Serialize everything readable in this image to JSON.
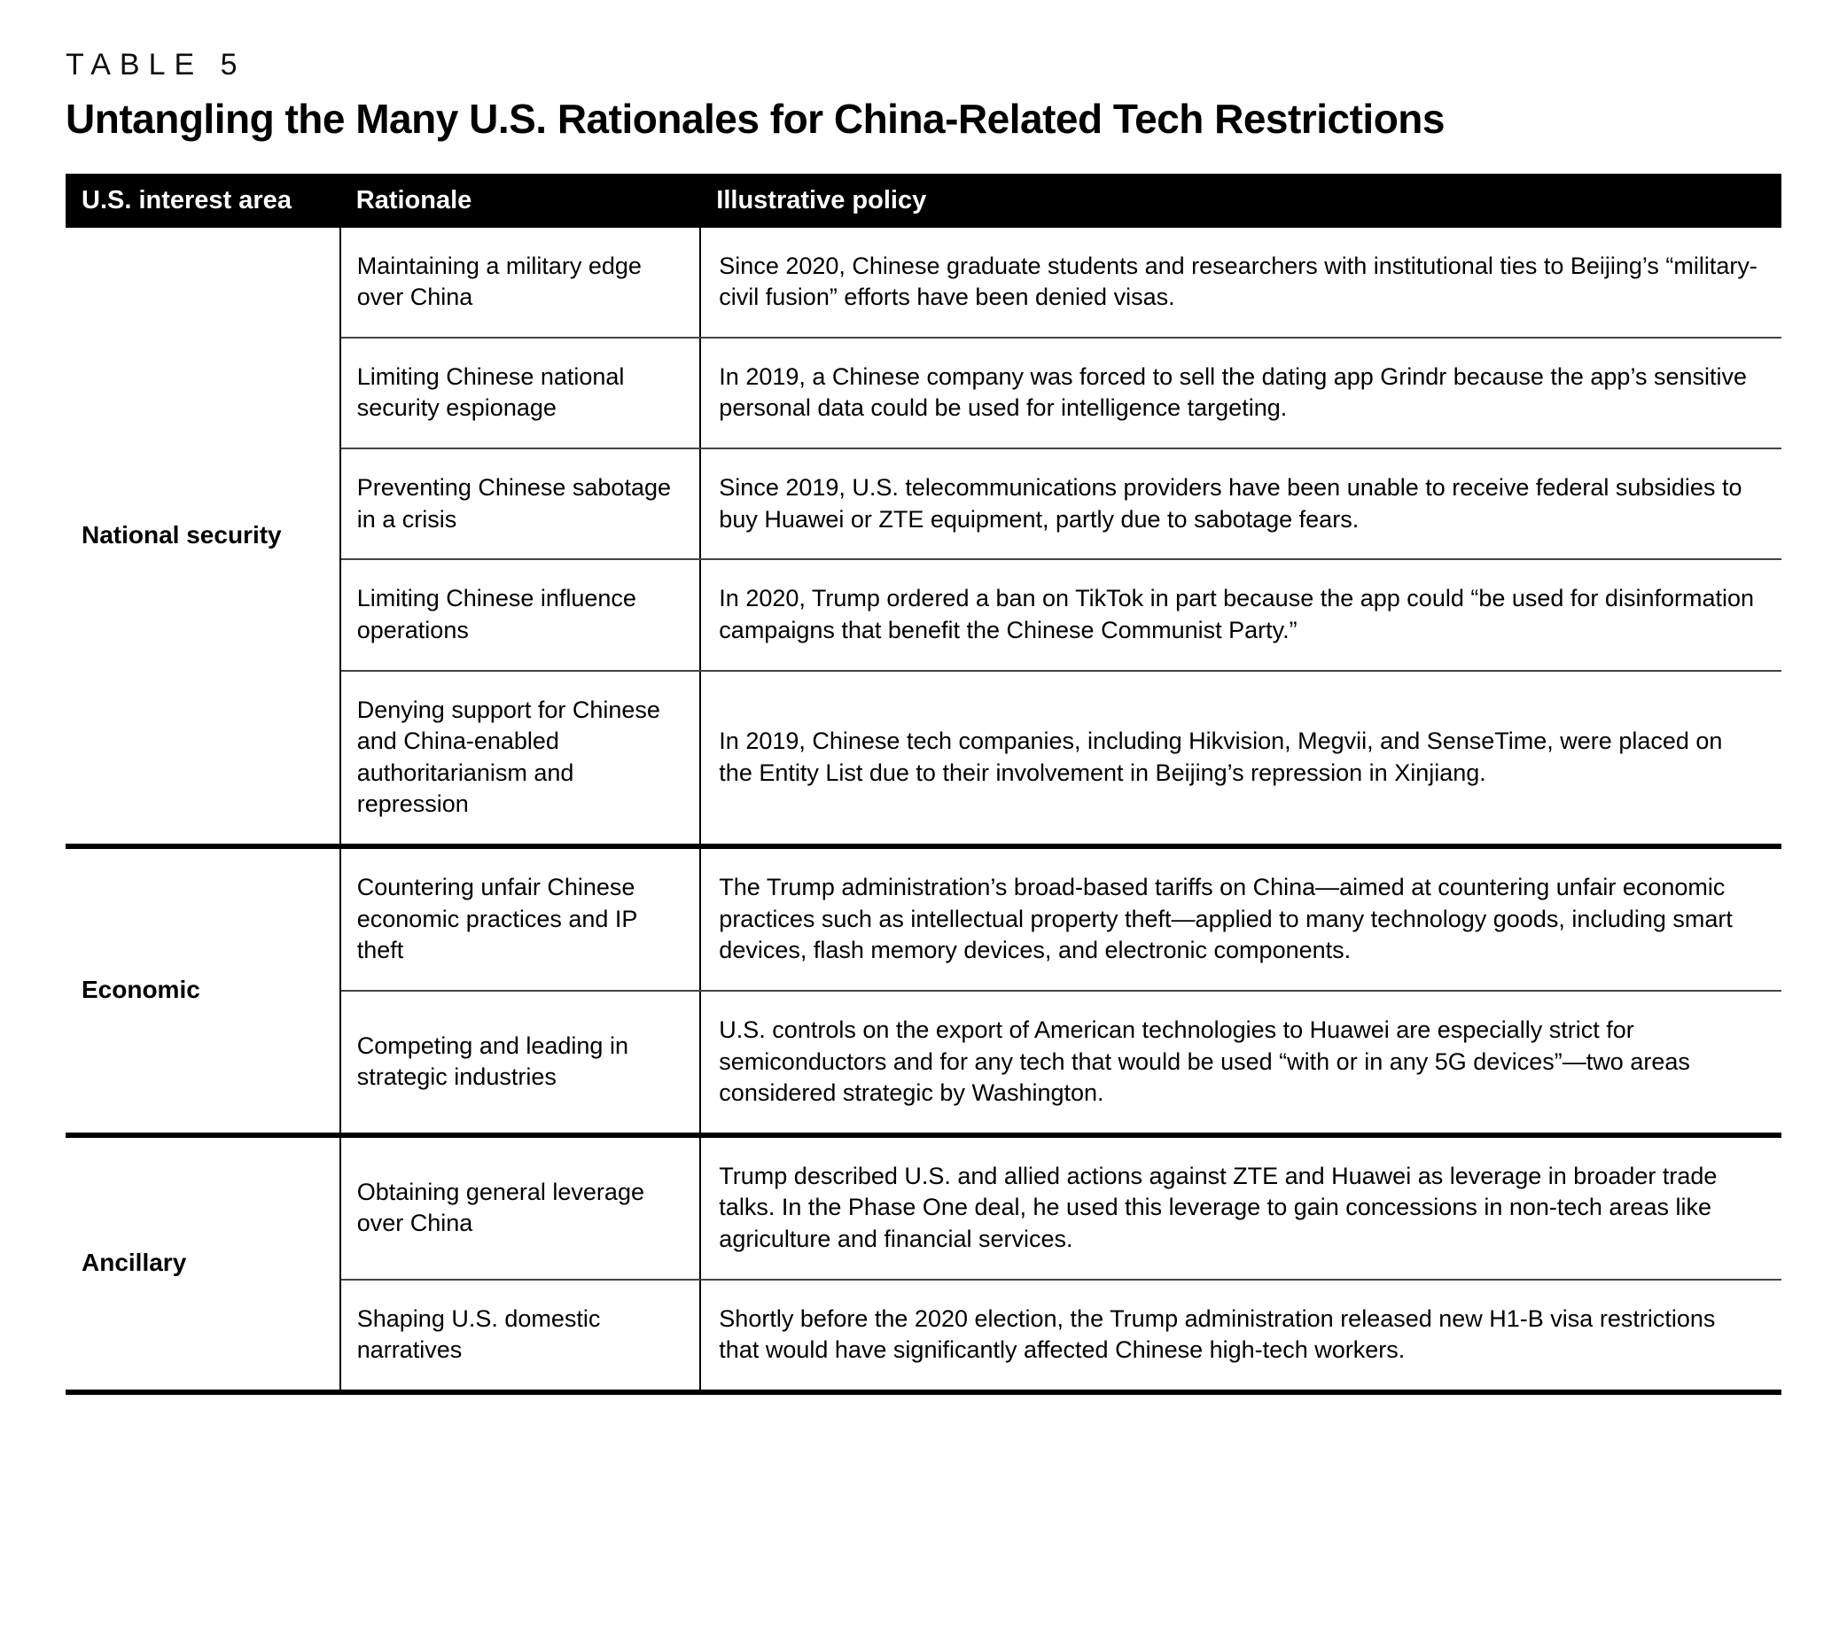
{
  "page": {
    "kicker": "TABLE 5",
    "title": "Untangling the Many U.S. Rationales for China-Related Tech Restrictions"
  },
  "table": {
    "columns": [
      "U.S. interest area",
      "Rationale",
      "Illustrative policy"
    ],
    "groups": [
      {
        "label": "National security",
        "rows": [
          {
            "rationale": "Maintaining a military edge over China",
            "policy": "Since 2020, Chinese graduate students and researchers with institutional ties to Beijing’s “military-civil fusion” efforts have been denied visas."
          },
          {
            "rationale": "Limiting Chinese national security espionage",
            "policy": "In 2019, a Chinese company was forced to sell the dating app Grindr because the app’s sensitive personal data could be used for intelligence targeting."
          },
          {
            "rationale": "Preventing Chinese sabotage in a crisis",
            "policy": "Since 2019, U.S. telecommunications providers have been unable to receive federal subsidies to buy Huawei or ZTE equipment, partly due to sabotage fears."
          },
          {
            "rationale": "Limiting Chinese influence operations",
            "policy": "In 2020, Trump ordered a ban on TikTok in part because the app could “be used for disinformation campaigns that benefit the Chinese Communist Party.”"
          },
          {
            "rationale": "Denying support for Chinese and China-enabled authoritarianism and repression",
            "policy": "In 2019, Chinese tech companies, including Hikvision, Megvii, and SenseTime, were placed on the Entity List due to their involvement in Beijing’s repression in Xinjiang."
          }
        ]
      },
      {
        "label": "Economic",
        "rows": [
          {
            "rationale": "Countering unfair Chinese economic practices and IP theft",
            "policy": "The Trump administration’s broad-based tariffs on China—aimed at countering unfair economic practices such as intellectual property theft—applied to many technology goods, including smart devices, flash memory devices, and electronic components."
          },
          {
            "rationale": "Competing and leading in strategic industries",
            "policy": "U.S. controls on the export of American technologies to Huawei are especially strict for semiconductors and for any tech that would be used “with or in any 5G devices”—two areas considered strategic by Washington."
          }
        ]
      },
      {
        "label": "Ancillary",
        "rows": [
          {
            "rationale": "Obtaining general leverage over China",
            "policy": "Trump described U.S. and allied actions against ZTE and Huawei as leverage in broader trade talks. In the Phase One deal, he used this leverage to gain concessions in non-tech areas like agriculture and financial services."
          },
          {
            "rationale": "Shaping U.S. domestic narratives",
            "policy": "Shortly before the 2020 election, the Trump administration released new H1-B visa restrictions that would have significantly affected Chinese high-tech workers."
          }
        ]
      }
    ]
  }
}
